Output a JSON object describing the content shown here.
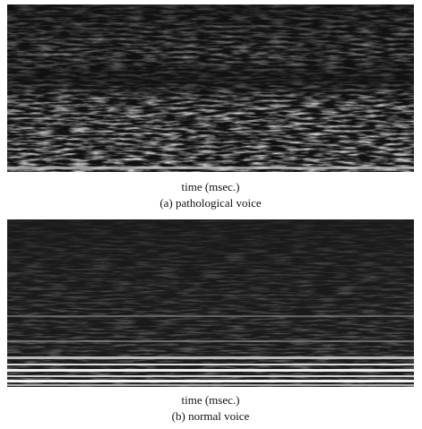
{
  "figures": [
    {
      "axis_label": "time (msec.)",
      "caption": "(a) pathological voice"
    },
    {
      "axis_label": "time (msec.)",
      "caption": "(b) normal voice"
    }
  ]
}
